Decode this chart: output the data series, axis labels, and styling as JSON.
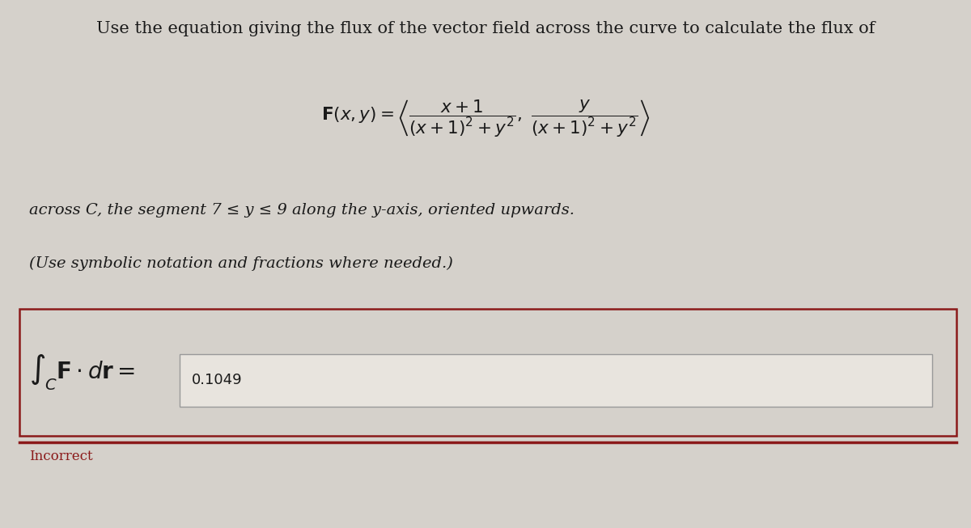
{
  "background_color": "#d5d1cb",
  "title_text": "Use the equation giving the flux of the vector field across the curve to calculate the flux of",
  "title_fontsize": 15,
  "title_color": "#1a1a1a",
  "across_text": "across C, the segment 7 ≤ y ≤ 9 along the y-axis, oriented upwards.",
  "use_text": "(Use symbolic notation and fractions where needed.)",
  "integral_label": "$\\int_C \\mathbf{F} \\cdot d\\mathbf{r} =$",
  "answer_value": "0.1049",
  "incorrect_text": "Incorrect",
  "incorrect_color": "#8b1a1a",
  "box_border_color": "#8b1a1a",
  "box_fill_color": "#d5d1cb",
  "answer_box_fill": "#e8e4de",
  "text_font_size": 14,
  "answer_font_size": 13,
  "integral_font_size": 20
}
